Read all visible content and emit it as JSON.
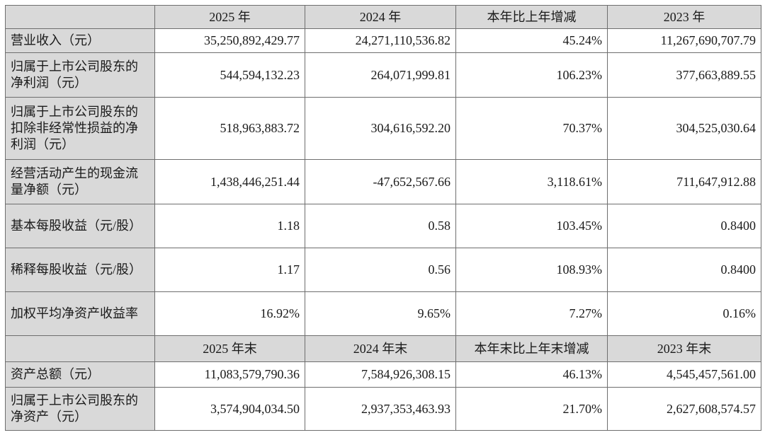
{
  "header_top": [
    "2025 年",
    "2024 年",
    "本年比上年增减",
    "2023 年"
  ],
  "header_mid": [
    "2025 年末",
    "2024 年末",
    "本年末比上年末增减",
    "2023 年末"
  ],
  "rows_top": [
    {
      "label": "营业收入（元）",
      "values": [
        "35,250,892,429.77",
        "24,271,110,536.82",
        "45.24%",
        "11,267,690,707.79"
      ]
    },
    {
      "label": "归属于上市公司股东的净利润（元）",
      "values": [
        "544,594,132.23",
        "264,071,999.81",
        "106.23%",
        "377,663,889.55"
      ]
    },
    {
      "label": "归属于上市公司股东的扣除非经常性损益的净利润（元）",
      "values": [
        "518,963,883.72",
        "304,616,592.20",
        "70.37%",
        "304,525,030.64"
      ]
    },
    {
      "label": "经营活动产生的现金流量净额（元）",
      "values": [
        "1,438,446,251.44",
        "-47,652,567.66",
        "3,118.61%",
        "711,647,912.88"
      ]
    },
    {
      "label": "基本每股收益（元/股）",
      "values": [
        "1.18",
        "0.58",
        "103.45%",
        "0.8400"
      ]
    },
    {
      "label": "稀释每股收益（元/股）",
      "values": [
        "1.17",
        "0.56",
        "108.93%",
        "0.8400"
      ]
    },
    {
      "label": "加权平均净资产收益率",
      "values": [
        "16.92%",
        "9.65%",
        "7.27%",
        "0.16%"
      ]
    }
  ],
  "rows_bottom": [
    {
      "label": "资产总额（元）",
      "values": [
        "11,083,579,790.36",
        "7,584,926,308.15",
        "46.13%",
        "4,545,457,561.00"
      ]
    },
    {
      "label": "归属于上市公司股东的净资产（元）",
      "values": [
        "3,574,904,034.50",
        "2,937,353,463.93",
        "21.70%",
        "2,627,608,574.57"
      ]
    }
  ]
}
